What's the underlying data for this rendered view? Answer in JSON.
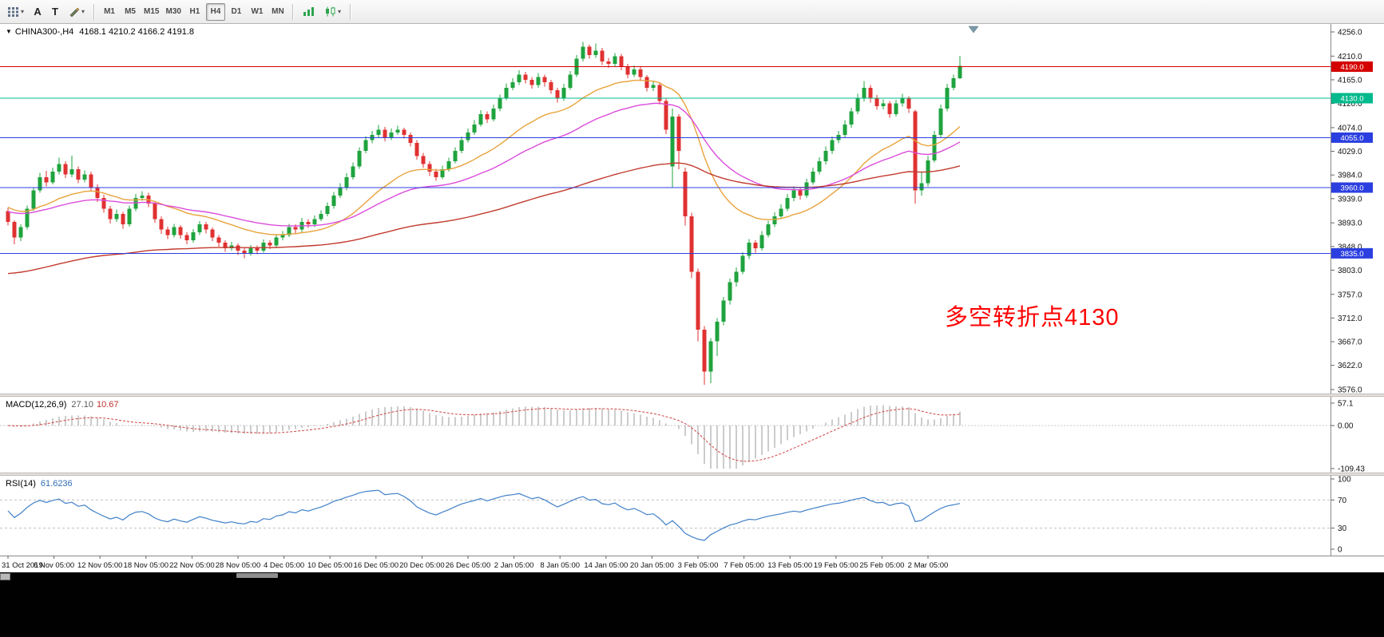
{
  "toolbar": {
    "caret": "▾",
    "tool_a": "A",
    "tool_t": "T",
    "timeframes": [
      "M1",
      "M5",
      "M15",
      "M30",
      "H1",
      "H4",
      "D1",
      "W1",
      "MN"
    ],
    "active_timeframe": "H4"
  },
  "main_chart": {
    "marker": "▼",
    "title": "CHINA300-,H4",
    "ohlc_text": "4168.1 4210.2 4166.2 4191.8",
    "annotation": {
      "text": "多空转折点4130",
      "color": "#FF0000"
    },
    "price_max": 4256.0,
    "price_min": 3576.0,
    "y_ticks": [
      "4256.0",
      "4210.0",
      "4165.0",
      "4120.0",
      "4074.0",
      "4029.0",
      "3984.0",
      "3939.0",
      "3893.0",
      "3848.0",
      "3803.0",
      "3757.0",
      "3712.0",
      "3667.0",
      "3622.0",
      "3576.0"
    ],
    "hlines": [
      {
        "price": 4190.0,
        "label": "4190.0",
        "color": "#D40000"
      },
      {
        "price": 4130.0,
        "label": "4130.0",
        "color": "#00B98C"
      },
      {
        "price": 4055.0,
        "label": "4055.0",
        "color": "#2B3FE0"
      },
      {
        "price": 3960.0,
        "label": "3960.0",
        "color": "#2B3FE0"
      },
      {
        "price": 3835.0,
        "label": "3835.0",
        "color": "#2B3FE0"
      }
    ],
    "colors": {
      "up": "#1FA33E",
      "down": "#E03131",
      "ma_fast": "#E8A33D",
      "ma_mid": "#DB4CDB",
      "ma_slow": "#C23B2E"
    }
  },
  "chart_data": {
    "type": "candlestick",
    "symbol": "CHINA300-",
    "timeframe": "H4",
    "ohlc_format": [
      "open",
      "high",
      "low",
      "close"
    ],
    "candles": [
      [
        3915,
        3922,
        3888,
        3895
      ],
      [
        3895,
        3898,
        3852,
        3865
      ],
      [
        3865,
        3890,
        3858,
        3885
      ],
      [
        3885,
        3926,
        3880,
        3920
      ],
      [
        3920,
        3961,
        3915,
        3955
      ],
      [
        3955,
        3988,
        3950,
        3980
      ],
      [
        3980,
        3992,
        3962,
        3970
      ],
      [
        3970,
        3998,
        3966,
        3990
      ],
      [
        3990,
        4017,
        3985,
        4005
      ],
      [
        4005,
        4010,
        3978,
        3985
      ],
      [
        3985,
        4021,
        3980,
        3995
      ],
      [
        3995,
        4000,
        3968,
        3975
      ],
      [
        3975,
        3993,
        3970,
        3985
      ],
      [
        3985,
        3990,
        3953,
        3960
      ],
      [
        3960,
        3966,
        3933,
        3940
      ],
      [
        3940,
        3946,
        3912,
        3920
      ],
      [
        3920,
        3925,
        3892,
        3900
      ],
      [
        3900,
        3918,
        3895,
        3910
      ],
      [
        3910,
        3914,
        3882,
        3890
      ],
      [
        3890,
        3926,
        3886,
        3920
      ],
      [
        3920,
        3948,
        3915,
        3940
      ],
      [
        3940,
        3953,
        3935,
        3945
      ],
      [
        3945,
        3950,
        3923,
        3930
      ],
      [
        3930,
        3934,
        3893,
        3900
      ],
      [
        3900,
        3905,
        3872,
        3880
      ],
      [
        3880,
        3886,
        3862,
        3870
      ],
      [
        3870,
        3891,
        3865,
        3885
      ],
      [
        3885,
        3889,
        3863,
        3870
      ],
      [
        3870,
        3875,
        3852,
        3860
      ],
      [
        3860,
        3881,
        3855,
        3875
      ],
      [
        3875,
        3896,
        3870,
        3890
      ],
      [
        3890,
        3895,
        3873,
        3880
      ],
      [
        3880,
        3884,
        3858,
        3865
      ],
      [
        3865,
        3870,
        3848,
        3855
      ],
      [
        3855,
        3860,
        3838,
        3845
      ],
      [
        3845,
        3857,
        3840,
        3850
      ],
      [
        3850,
        3854,
        3832,
        3840
      ],
      [
        3840,
        3845,
        3826,
        3835
      ],
      [
        3835,
        3851,
        3830,
        3845
      ],
      [
        3845,
        3850,
        3833,
        3840
      ],
      [
        3840,
        3861,
        3836,
        3855
      ],
      [
        3855,
        3860,
        3843,
        3850
      ],
      [
        3850,
        3871,
        3846,
        3865
      ],
      [
        3865,
        3877,
        3860,
        3870
      ],
      [
        3870,
        3891,
        3866,
        3885
      ],
      [
        3885,
        3890,
        3872,
        3880
      ],
      [
        3880,
        3902,
        3876,
        3895
      ],
      [
        3895,
        3900,
        3883,
        3890
      ],
      [
        3890,
        3907,
        3885,
        3900
      ],
      [
        3900,
        3917,
        3896,
        3910
      ],
      [
        3910,
        3932,
        3905,
        3925
      ],
      [
        3925,
        3952,
        3920,
        3945
      ],
      [
        3945,
        3968,
        3940,
        3960
      ],
      [
        3960,
        3987,
        3955,
        3980
      ],
      [
        3980,
        4008,
        3975,
        4000
      ],
      [
        4000,
        4037,
        3996,
        4030
      ],
      [
        4030,
        4058,
        4025,
        4050
      ],
      [
        4050,
        4068,
        4044,
        4060
      ],
      [
        4060,
        4079,
        4054,
        4070
      ],
      [
        4070,
        4075,
        4048,
        4055
      ],
      [
        4055,
        4072,
        4050,
        4065
      ],
      [
        4065,
        4078,
        4060,
        4070
      ],
      [
        4070,
        4074,
        4053,
        4060
      ],
      [
        4060,
        4065,
        4038,
        4045
      ],
      [
        4045,
        4050,
        4013,
        4020
      ],
      [
        4020,
        4026,
        3998,
        4005
      ],
      [
        4005,
        4010,
        3982,
        3990
      ],
      [
        3990,
        3996,
        3973,
        3980
      ],
      [
        3980,
        4002,
        3976,
        3995
      ],
      [
        3995,
        4017,
        3990,
        4010
      ],
      [
        4010,
        4037,
        4006,
        4030
      ],
      [
        4030,
        4057,
        4025,
        4050
      ],
      [
        4050,
        4072,
        4046,
        4065
      ],
      [
        4065,
        4088,
        4060,
        4080
      ],
      [
        4080,
        4107,
        4076,
        4100
      ],
      [
        4100,
        4105,
        4083,
        4090
      ],
      [
        4090,
        4118,
        4086,
        4110
      ],
      [
        4110,
        4137,
        4105,
        4130
      ],
      [
        4130,
        4158,
        4126,
        4150
      ],
      [
        4150,
        4168,
        4145,
        4160
      ],
      [
        4160,
        4183,
        4155,
        4175
      ],
      [
        4175,
        4180,
        4158,
        4165
      ],
      [
        4165,
        4170,
        4148,
        4155
      ],
      [
        4155,
        4178,
        4150,
        4170
      ],
      [
        4170,
        4175,
        4152,
        4160
      ],
      [
        4160,
        4165,
        4138,
        4145
      ],
      [
        4145,
        4150,
        4122,
        4130
      ],
      [
        4130,
        4157,
        4125,
        4150
      ],
      [
        4150,
        4182,
        4146,
        4175
      ],
      [
        4175,
        4212,
        4170,
        4205
      ],
      [
        4205,
        4237,
        4200,
        4228
      ],
      [
        4228,
        4232,
        4205,
        4212
      ],
      [
        4212,
        4234,
        4207,
        4220
      ],
      [
        4220,
        4226,
        4193,
        4200
      ],
      [
        4200,
        4207,
        4188,
        4195
      ],
      [
        4195,
        4216,
        4190,
        4210
      ],
      [
        4210,
        4214,
        4183,
        4190
      ],
      [
        4190,
        4195,
        4168,
        4175
      ],
      [
        4175,
        4192,
        4170,
        4185
      ],
      [
        4185,
        4190,
        4163,
        4170
      ],
      [
        4170,
        4174,
        4143,
        4150
      ],
      [
        4150,
        4162,
        4144,
        4155
      ],
      [
        4155,
        4159,
        4118,
        4125
      ],
      [
        4125,
        4129,
        4062,
        4070
      ],
      [
        4000,
        4110,
        3960,
        4095
      ],
      [
        4095,
        4100,
        3995,
        4030
      ],
      [
        3990,
        3998,
        3888,
        3905
      ],
      [
        3905,
        3912,
        3788,
        3800
      ],
      [
        3800,
        3806,
        3668,
        3690
      ],
      [
        3690,
        3697,
        3585,
        3610
      ],
      [
        3610,
        3674,
        3588,
        3668
      ],
      [
        3668,
        3712,
        3640,
        3705
      ],
      [
        3705,
        3752,
        3698,
        3745
      ],
      [
        3745,
        3787,
        3738,
        3780
      ],
      [
        3780,
        3808,
        3772,
        3800
      ],
      [
        3800,
        3837,
        3795,
        3830
      ],
      [
        3830,
        3862,
        3824,
        3855
      ],
      [
        3855,
        3860,
        3836,
        3845
      ],
      [
        3845,
        3877,
        3840,
        3870
      ],
      [
        3870,
        3897,
        3865,
        3890
      ],
      [
        3890,
        3913,
        3885,
        3905
      ],
      [
        3905,
        3928,
        3900,
        3920
      ],
      [
        3920,
        3948,
        3915,
        3940
      ],
      [
        3940,
        3962,
        3934,
        3955
      ],
      [
        3955,
        3960,
        3937,
        3945
      ],
      [
        3945,
        3977,
        3940,
        3970
      ],
      [
        3970,
        3998,
        3965,
        3990
      ],
      [
        3990,
        4018,
        3985,
        4010
      ],
      [
        4010,
        4038,
        4004,
        4030
      ],
      [
        4030,
        4057,
        4024,
        4050
      ],
      [
        4050,
        4068,
        4044,
        4060
      ],
      [
        4060,
        4088,
        4055,
        4080
      ],
      [
        4080,
        4112,
        4074,
        4105
      ],
      [
        4105,
        4138,
        4100,
        4130
      ],
      [
        4130,
        4163,
        4124,
        4150
      ],
      [
        4150,
        4155,
        4122,
        4130
      ],
      [
        4130,
        4136,
        4108,
        4115
      ],
      [
        4115,
        4128,
        4109,
        4120
      ],
      [
        4120,
        4125,
        4093,
        4100
      ],
      [
        4100,
        4127,
        4095,
        4120
      ],
      [
        4120,
        4138,
        4114,
        4130
      ],
      [
        4130,
        4134,
        4102,
        4110
      ],
      [
        4105,
        4108,
        3930,
        3955
      ],
      [
        3955,
        3990,
        3945,
        3968
      ],
      [
        3968,
        4020,
        3962,
        4012
      ],
      [
        4012,
        4068,
        4008,
        4060
      ],
      [
        4060,
        4118,
        4055,
        4110
      ],
      [
        4110,
        4157,
        4105,
        4150
      ],
      [
        4150,
        4175,
        4145,
        4168
      ],
      [
        4168.1,
        4210.2,
        4166.2,
        4191.8
      ]
    ]
  },
  "macd": {
    "title": "MACD(12,26,9)",
    "value_main": "27.10",
    "value_signal": "10.67",
    "scale_max": 57.1,
    "scale_min": -109.43,
    "y_labels": [
      "57.1",
      "0.00",
      "-109.43"
    ],
    "histogram_color": "#9A9A9A",
    "signal_color": "#D04040"
  },
  "rsi": {
    "title": "RSI(14)",
    "value": "61.6236",
    "levels": [
      100,
      70,
      30,
      0
    ],
    "line_color": "#4080C8",
    "level_line_color": "#C0C0C0"
  },
  "time_axis": {
    "labels": [
      "31 Oct 2019",
      "6 Nov 05:00",
      "12 Nov 05:00",
      "18 Nov 05:00",
      "22 Nov 05:00",
      "28 Nov 05:00",
      "4 Dec 05:00",
      "10 Dec 05:00",
      "16 Dec 05:00",
      "20 Dec 05:00",
      "26 Dec 05:00",
      "2 Jan 05:00",
      "8 Jan 05:00",
      "14 Jan 05:00",
      "20 Jan 05:00",
      "3 Feb 05:00",
      "7 Feb 05:00",
      "13 Feb 05:00",
      "19 Feb 05:00",
      "25 Feb 05:00",
      "2 Mar 05:00"
    ]
  }
}
